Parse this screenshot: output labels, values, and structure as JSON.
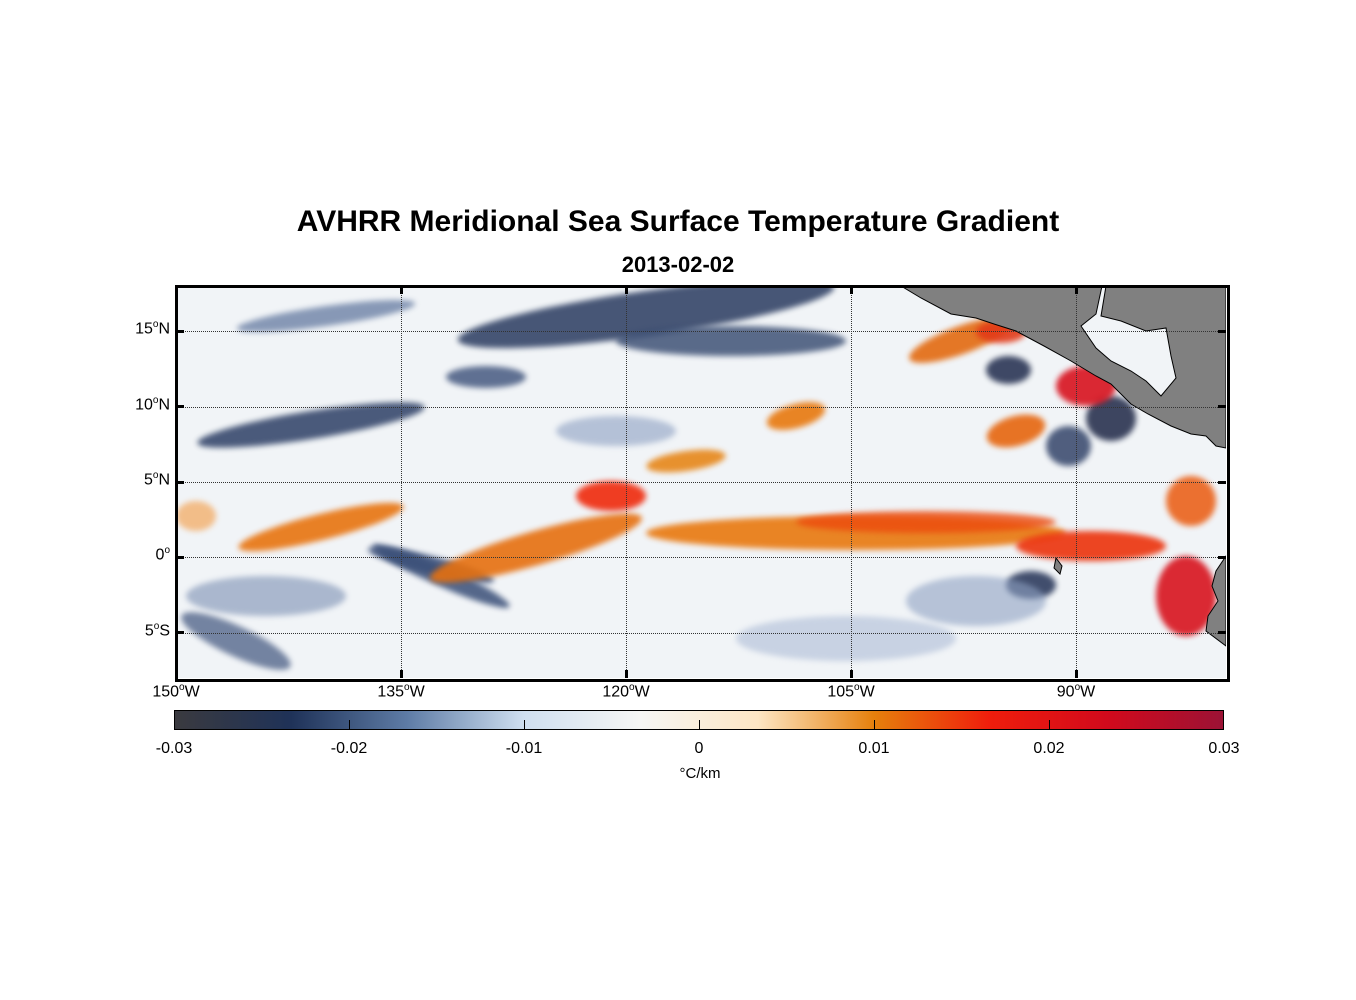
{
  "title": "AVHRR Meridional Sea Surface Temperature Gradient",
  "subtitle": "2013-02-02",
  "map": {
    "lon_range": [
      -150,
      -80
    ],
    "lat_range": [
      -8,
      18
    ],
    "x_ticks": [
      {
        "deg": "150",
        "hemi": "W"
      },
      {
        "deg": "135",
        "hemi": "W"
      },
      {
        "deg": "120",
        "hemi": "W"
      },
      {
        "deg": "105",
        "hemi": "W"
      },
      {
        "deg": "90",
        "hemi": "W"
      }
    ],
    "y_ticks": [
      {
        "deg": "15",
        "hemi": "N"
      },
      {
        "deg": "10",
        "hemi": "N"
      },
      {
        "deg": "5",
        "hemi": "N"
      },
      {
        "deg": "0",
        "hemi": ""
      },
      {
        "deg": "5",
        "hemi": "S"
      }
    ],
    "land_color": "#808080",
    "grid": true
  },
  "colorbar": {
    "ticks": [
      "-0.03",
      "-0.02",
      "-0.01",
      "0",
      "0.01",
      "0.02",
      "0.03"
    ],
    "unit": "°C/km",
    "colors": [
      "#3a3a3f",
      "#1f3258",
      "#5e7ca6",
      "#cfdff0",
      "#f6f6f4",
      "#fde6c4",
      "#e6800c",
      "#ef1d0c",
      "#d20a1c",
      "#9b1235"
    ]
  }
}
